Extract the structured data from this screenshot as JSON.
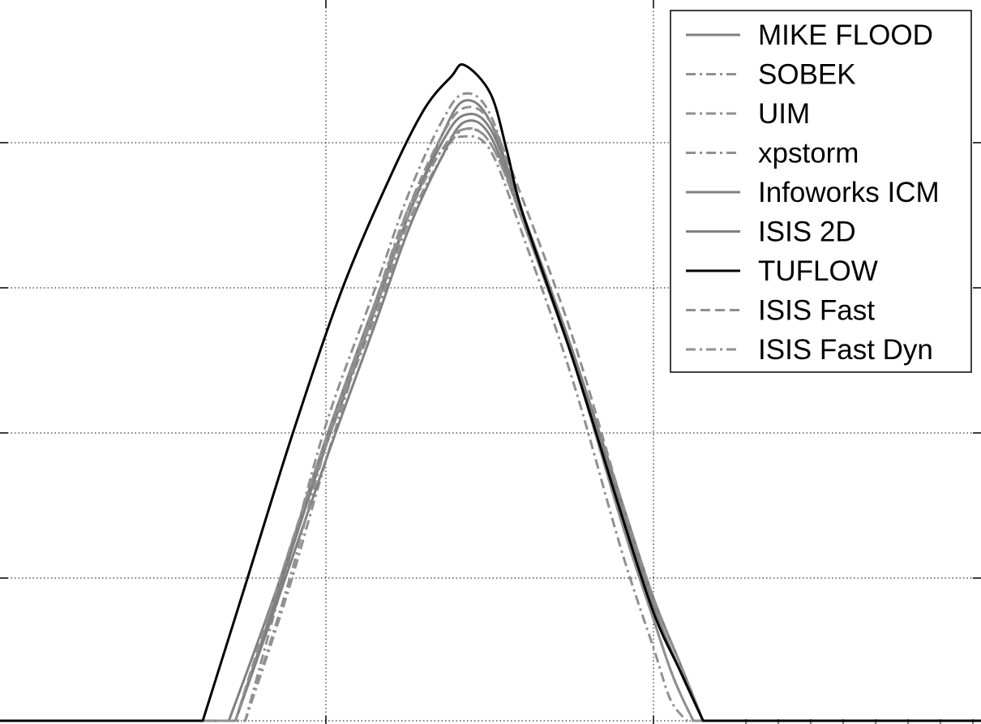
{
  "chart_data": {
    "type": "line",
    "title": "",
    "xlabel": "",
    "ylabel": "",
    "xlim": [
      0,
      3
    ],
    "ylim": [
      0,
      5
    ],
    "grid": true,
    "grid_style": "dotted",
    "legend_position": "top-right",
    "series": [
      {
        "name": "MIKE FLOOD",
        "color": "#808080",
        "style": "solid",
        "peak": 4.35,
        "start": 0.7,
        "end": 2.15,
        "x": [
          0.7,
          0.85,
          1.0,
          1.15,
          1.25,
          1.35,
          1.42,
          1.5,
          1.6,
          1.75,
          1.9,
          2.0,
          2.08,
          2.15
        ],
        "y": [
          0.0,
          0.95,
          2.0,
          2.95,
          3.55,
          4.1,
          4.35,
          4.2,
          3.55,
          2.6,
          1.5,
          0.85,
          0.4,
          0.0
        ]
      },
      {
        "name": "SOBEK",
        "color": "#909090",
        "style": "dashdot",
        "peak": 4.1,
        "start": 0.75,
        "end": 2.1,
        "x": [
          0.75,
          0.88,
          1.0,
          1.15,
          1.25,
          1.35,
          1.42,
          1.5,
          1.6,
          1.75,
          1.9,
          2.0,
          2.05,
          2.1
        ],
        "y": [
          0.0,
          0.9,
          1.85,
          2.95,
          3.6,
          4.0,
          4.1,
          4.0,
          3.4,
          2.4,
          1.2,
          0.5,
          0.15,
          0.0
        ]
      },
      {
        "name": "UIM",
        "color": "#909090",
        "style": "dashdot",
        "peak": 4.4,
        "start": 0.75,
        "end": 2.12,
        "x": [
          0.75,
          0.88,
          1.0,
          1.15,
          1.25,
          1.35,
          1.42,
          1.5,
          1.6,
          1.75,
          1.9,
          2.0,
          2.06,
          2.12
        ],
        "y": [
          0.0,
          1.1,
          2.1,
          3.05,
          3.7,
          4.2,
          4.4,
          4.25,
          3.55,
          2.55,
          1.4,
          0.7,
          0.3,
          0.0
        ]
      },
      {
        "name": "xpstorm",
        "color": "#909090",
        "style": "dashdot",
        "peak": 4.15,
        "start": 0.72,
        "end": 2.12,
        "x": [
          0.72,
          0.85,
          1.0,
          1.15,
          1.25,
          1.35,
          1.42,
          1.5,
          1.6,
          1.75,
          1.9,
          2.0,
          2.06,
          2.12
        ],
        "y": [
          0.0,
          0.9,
          1.95,
          2.85,
          3.5,
          3.95,
          4.15,
          4.05,
          3.5,
          2.55,
          1.4,
          0.7,
          0.3,
          0.0
        ]
      },
      {
        "name": "Infoworks ICM",
        "color": "#808080",
        "style": "solid",
        "peak": 4.25,
        "start": 0.72,
        "end": 2.15,
        "x": [
          0.72,
          0.85,
          1.0,
          1.15,
          1.25,
          1.35,
          1.42,
          1.5,
          1.6,
          1.75,
          1.9,
          2.0,
          2.08,
          2.15
        ],
        "y": [
          0.0,
          0.9,
          1.95,
          2.9,
          3.55,
          4.05,
          4.25,
          4.15,
          3.55,
          2.6,
          1.55,
          0.85,
          0.4,
          0.0
        ]
      },
      {
        "name": "ISIS 2D",
        "color": "#808080",
        "style": "solid",
        "peak": 4.2,
        "start": 0.72,
        "end": 2.15,
        "x": [
          0.72,
          0.85,
          1.0,
          1.15,
          1.25,
          1.35,
          1.42,
          1.5,
          1.6,
          1.75,
          1.9,
          2.0,
          2.08,
          2.15
        ],
        "y": [
          0.0,
          0.85,
          1.85,
          2.8,
          3.45,
          3.95,
          4.2,
          4.1,
          3.5,
          2.55,
          1.5,
          0.8,
          0.35,
          0.0
        ]
      },
      {
        "name": "TUFLOW",
        "color": "#000000",
        "style": "solid",
        "peak": 4.6,
        "start": 0.62,
        "end": 2.15,
        "x": [
          0.62,
          0.75,
          0.9,
          1.05,
          1.2,
          1.3,
          1.38,
          1.42,
          1.5,
          1.55,
          1.6,
          1.75,
          1.9,
          2.0,
          2.08,
          2.15
        ],
        "y": [
          0.0,
          0.95,
          2.05,
          3.05,
          3.85,
          4.3,
          4.52,
          4.6,
          4.4,
          4.0,
          3.55,
          2.55,
          1.45,
          0.75,
          0.35,
          0.0
        ]
      },
      {
        "name": "ISIS Fast",
        "color": "#909090",
        "style": "dashed",
        "peak": 4.3,
        "start": 0.72,
        "end": 2.15,
        "x": [
          0.72,
          0.85,
          1.0,
          1.15,
          1.25,
          1.35,
          1.42,
          1.5,
          1.6,
          1.75,
          1.9,
          2.0,
          2.08,
          2.15
        ],
        "y": [
          0.0,
          0.95,
          2.0,
          2.95,
          3.6,
          4.1,
          4.3,
          4.2,
          3.65,
          2.7,
          1.55,
          0.85,
          0.4,
          0.0
        ]
      },
      {
        "name": "ISIS Fast Dyn",
        "color": "#909090",
        "style": "dashdot",
        "peak": 4.15,
        "start": 0.75,
        "end": 2.12,
        "x": [
          0.75,
          0.88,
          1.0,
          1.15,
          1.25,
          1.35,
          1.42,
          1.5,
          1.6,
          1.75,
          1.9,
          2.0,
          2.06,
          2.12
        ],
        "y": [
          0.0,
          0.95,
          1.95,
          2.9,
          3.55,
          4.0,
          4.15,
          4.05,
          3.5,
          2.55,
          1.4,
          0.7,
          0.3,
          0.0
        ]
      }
    ]
  }
}
